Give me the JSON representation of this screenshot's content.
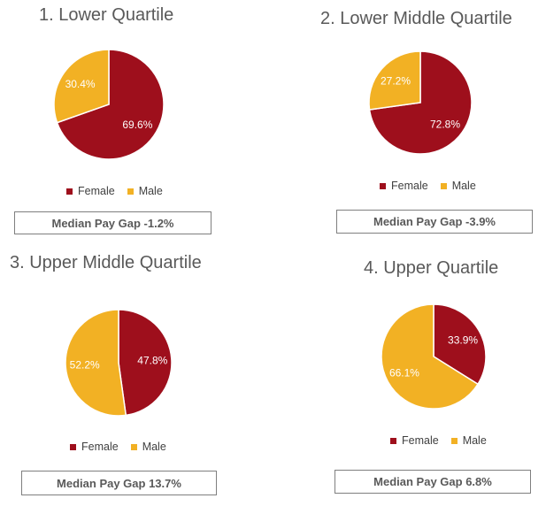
{
  "colors": {
    "female": "#9e0f1c",
    "male": "#f2b124"
  },
  "legend": {
    "female": "Female",
    "male": "Male"
  },
  "chart_data": [
    {
      "type": "pie",
      "title": "1. Lower Quartile",
      "categories": [
        "Female",
        "Male"
      ],
      "values": [
        69.6,
        30.4
      ],
      "labels": [
        "69.6%",
        "30.4%"
      ],
      "footer": "Median Pay Gap -1.2%"
    },
    {
      "type": "pie",
      "title": "2. Lower Middle Quartile",
      "categories": [
        "Female",
        "Male"
      ],
      "values": [
        72.8,
        27.2
      ],
      "labels": [
        "72.8%",
        "27.2%"
      ],
      "footer": "Median Pay Gap -3.9%"
    },
    {
      "type": "pie",
      "title": "3. Upper Middle Quartile",
      "categories": [
        "Female",
        "Male"
      ],
      "values": [
        47.8,
        52.2
      ],
      "labels": [
        "47.8%",
        "52.2%"
      ],
      "footer": "Median Pay Gap 13.7%"
    },
    {
      "type": "pie",
      "title": "4. Upper Quartile",
      "categories": [
        "Female",
        "Male"
      ],
      "values": [
        33.9,
        66.1
      ],
      "labels": [
        "33.9%",
        "66.1%"
      ],
      "footer": "Median Pay Gap 6.8%"
    }
  ]
}
